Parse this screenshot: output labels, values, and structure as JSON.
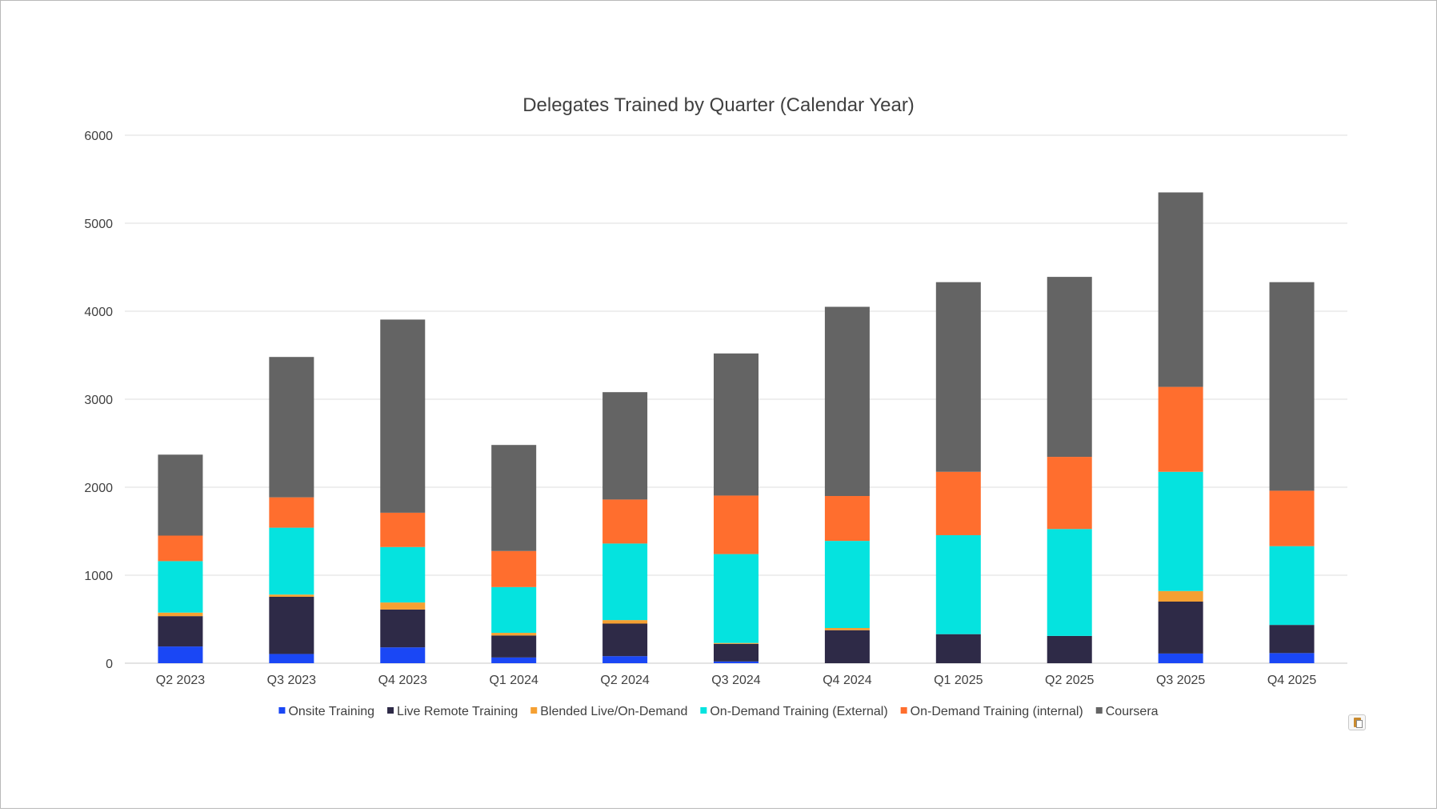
{
  "chart_data": {
    "type": "bar",
    "stacked": true,
    "title": "Delegates  Trained by Quarter (Calendar Year)",
    "xlabel": "",
    "ylabel": "",
    "ylim": [
      0,
      6000
    ],
    "yticks": [
      0,
      1000,
      2000,
      3000,
      4000,
      5000,
      6000
    ],
    "grid": true,
    "legend_position": "bottom",
    "categories": [
      "Q2 2023",
      "Q3 2023",
      "Q4 2023",
      "Q1 2024",
      "Q2 2024",
      "Q3 2024",
      "Q4 2024",
      "Q1 2025",
      "Q2 2025",
      "Q3 2025",
      "Q4 2025"
    ],
    "series": [
      {
        "name": "Onsite Training",
        "color": "#1a47f5",
        "values": [
          190,
          105,
          180,
          65,
          80,
          20,
          0,
          0,
          0,
          110,
          115
        ]
      },
      {
        "name": "Live Remote Training",
        "color": "#2e2a47",
        "values": [
          345,
          650,
          430,
          250,
          370,
          200,
          375,
          330,
          310,
          590,
          320
        ]
      },
      {
        "name": "Blended Live/On-Demand",
        "color": "#f5a032",
        "values": [
          40,
          25,
          80,
          30,
          40,
          10,
          25,
          0,
          0,
          120,
          0
        ]
      },
      {
        "name": "On-Demand Training (External)",
        "color": "#05e3df",
        "values": [
          585,
          760,
          630,
          520,
          870,
          1010,
          990,
          1125,
          1215,
          1355,
          895
        ]
      },
      {
        "name": "On-Demand Training (internal)",
        "color": "#ff6e2e",
        "values": [
          290,
          345,
          390,
          410,
          500,
          665,
          510,
          720,
          820,
          965,
          630
        ]
      },
      {
        "name": "Coursera",
        "color": "#646464",
        "values": [
          920,
          1595,
          2195,
          1205,
          1220,
          1615,
          2150,
          2155,
          2045,
          2210,
          2370
        ]
      }
    ]
  },
  "ui": {
    "paste_options_icon": "clipboard-icon"
  }
}
